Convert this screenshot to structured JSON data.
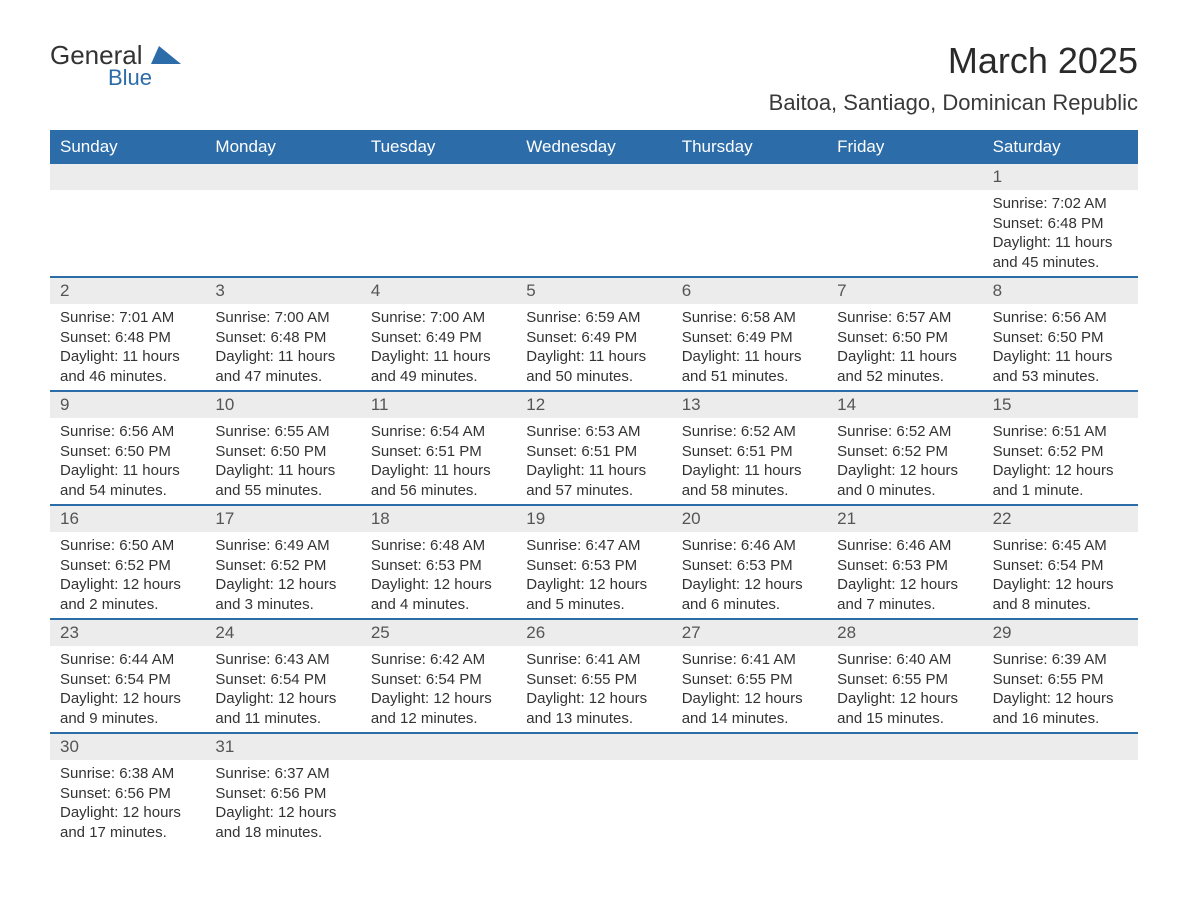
{
  "logo": {
    "general": "General",
    "blue": "Blue"
  },
  "title": "March 2025",
  "location": "Baitoa, Santiago, Dominican Republic",
  "colors": {
    "header_bg": "#2c6ca8",
    "header_text": "#ffffff",
    "band_bg": "#ececec",
    "row_divider": "#2c6ca8",
    "text": "#333333"
  },
  "weekdays": [
    "Sunday",
    "Monday",
    "Tuesday",
    "Wednesday",
    "Thursday",
    "Friday",
    "Saturday"
  ],
  "weeks": [
    [
      null,
      null,
      null,
      null,
      null,
      null,
      {
        "n": "1",
        "sunrise": "Sunrise: 7:02 AM",
        "sunset": "Sunset: 6:48 PM",
        "daylight": "Daylight: 11 hours and 45 minutes."
      }
    ],
    [
      {
        "n": "2",
        "sunrise": "Sunrise: 7:01 AM",
        "sunset": "Sunset: 6:48 PM",
        "daylight": "Daylight: 11 hours and 46 minutes."
      },
      {
        "n": "3",
        "sunrise": "Sunrise: 7:00 AM",
        "sunset": "Sunset: 6:48 PM",
        "daylight": "Daylight: 11 hours and 47 minutes."
      },
      {
        "n": "4",
        "sunrise": "Sunrise: 7:00 AM",
        "sunset": "Sunset: 6:49 PM",
        "daylight": "Daylight: 11 hours and 49 minutes."
      },
      {
        "n": "5",
        "sunrise": "Sunrise: 6:59 AM",
        "sunset": "Sunset: 6:49 PM",
        "daylight": "Daylight: 11 hours and 50 minutes."
      },
      {
        "n": "6",
        "sunrise": "Sunrise: 6:58 AM",
        "sunset": "Sunset: 6:49 PM",
        "daylight": "Daylight: 11 hours and 51 minutes."
      },
      {
        "n": "7",
        "sunrise": "Sunrise: 6:57 AM",
        "sunset": "Sunset: 6:50 PM",
        "daylight": "Daylight: 11 hours and 52 minutes."
      },
      {
        "n": "8",
        "sunrise": "Sunrise: 6:56 AM",
        "sunset": "Sunset: 6:50 PM",
        "daylight": "Daylight: 11 hours and 53 minutes."
      }
    ],
    [
      {
        "n": "9",
        "sunrise": "Sunrise: 6:56 AM",
        "sunset": "Sunset: 6:50 PM",
        "daylight": "Daylight: 11 hours and 54 minutes."
      },
      {
        "n": "10",
        "sunrise": "Sunrise: 6:55 AM",
        "sunset": "Sunset: 6:50 PM",
        "daylight": "Daylight: 11 hours and 55 minutes."
      },
      {
        "n": "11",
        "sunrise": "Sunrise: 6:54 AM",
        "sunset": "Sunset: 6:51 PM",
        "daylight": "Daylight: 11 hours and 56 minutes."
      },
      {
        "n": "12",
        "sunrise": "Sunrise: 6:53 AM",
        "sunset": "Sunset: 6:51 PM",
        "daylight": "Daylight: 11 hours and 57 minutes."
      },
      {
        "n": "13",
        "sunrise": "Sunrise: 6:52 AM",
        "sunset": "Sunset: 6:51 PM",
        "daylight": "Daylight: 11 hours and 58 minutes."
      },
      {
        "n": "14",
        "sunrise": "Sunrise: 6:52 AM",
        "sunset": "Sunset: 6:52 PM",
        "daylight": "Daylight: 12 hours and 0 minutes."
      },
      {
        "n": "15",
        "sunrise": "Sunrise: 6:51 AM",
        "sunset": "Sunset: 6:52 PM",
        "daylight": "Daylight: 12 hours and 1 minute."
      }
    ],
    [
      {
        "n": "16",
        "sunrise": "Sunrise: 6:50 AM",
        "sunset": "Sunset: 6:52 PM",
        "daylight": "Daylight: 12 hours and 2 minutes."
      },
      {
        "n": "17",
        "sunrise": "Sunrise: 6:49 AM",
        "sunset": "Sunset: 6:52 PM",
        "daylight": "Daylight: 12 hours and 3 minutes."
      },
      {
        "n": "18",
        "sunrise": "Sunrise: 6:48 AM",
        "sunset": "Sunset: 6:53 PM",
        "daylight": "Daylight: 12 hours and 4 minutes."
      },
      {
        "n": "19",
        "sunrise": "Sunrise: 6:47 AM",
        "sunset": "Sunset: 6:53 PM",
        "daylight": "Daylight: 12 hours and 5 minutes."
      },
      {
        "n": "20",
        "sunrise": "Sunrise: 6:46 AM",
        "sunset": "Sunset: 6:53 PM",
        "daylight": "Daylight: 12 hours and 6 minutes."
      },
      {
        "n": "21",
        "sunrise": "Sunrise: 6:46 AM",
        "sunset": "Sunset: 6:53 PM",
        "daylight": "Daylight: 12 hours and 7 minutes."
      },
      {
        "n": "22",
        "sunrise": "Sunrise: 6:45 AM",
        "sunset": "Sunset: 6:54 PM",
        "daylight": "Daylight: 12 hours and 8 minutes."
      }
    ],
    [
      {
        "n": "23",
        "sunrise": "Sunrise: 6:44 AM",
        "sunset": "Sunset: 6:54 PM",
        "daylight": "Daylight: 12 hours and 9 minutes."
      },
      {
        "n": "24",
        "sunrise": "Sunrise: 6:43 AM",
        "sunset": "Sunset: 6:54 PM",
        "daylight": "Daylight: 12 hours and 11 minutes."
      },
      {
        "n": "25",
        "sunrise": "Sunrise: 6:42 AM",
        "sunset": "Sunset: 6:54 PM",
        "daylight": "Daylight: 12 hours and 12 minutes."
      },
      {
        "n": "26",
        "sunrise": "Sunrise: 6:41 AM",
        "sunset": "Sunset: 6:55 PM",
        "daylight": "Daylight: 12 hours and 13 minutes."
      },
      {
        "n": "27",
        "sunrise": "Sunrise: 6:41 AM",
        "sunset": "Sunset: 6:55 PM",
        "daylight": "Daylight: 12 hours and 14 minutes."
      },
      {
        "n": "28",
        "sunrise": "Sunrise: 6:40 AM",
        "sunset": "Sunset: 6:55 PM",
        "daylight": "Daylight: 12 hours and 15 minutes."
      },
      {
        "n": "29",
        "sunrise": "Sunrise: 6:39 AM",
        "sunset": "Sunset: 6:55 PM",
        "daylight": "Daylight: 12 hours and 16 minutes."
      }
    ],
    [
      {
        "n": "30",
        "sunrise": "Sunrise: 6:38 AM",
        "sunset": "Sunset: 6:56 PM",
        "daylight": "Daylight: 12 hours and 17 minutes."
      },
      {
        "n": "31",
        "sunrise": "Sunrise: 6:37 AM",
        "sunset": "Sunset: 6:56 PM",
        "daylight": "Daylight: 12 hours and 18 minutes."
      },
      null,
      null,
      null,
      null,
      null
    ]
  ]
}
